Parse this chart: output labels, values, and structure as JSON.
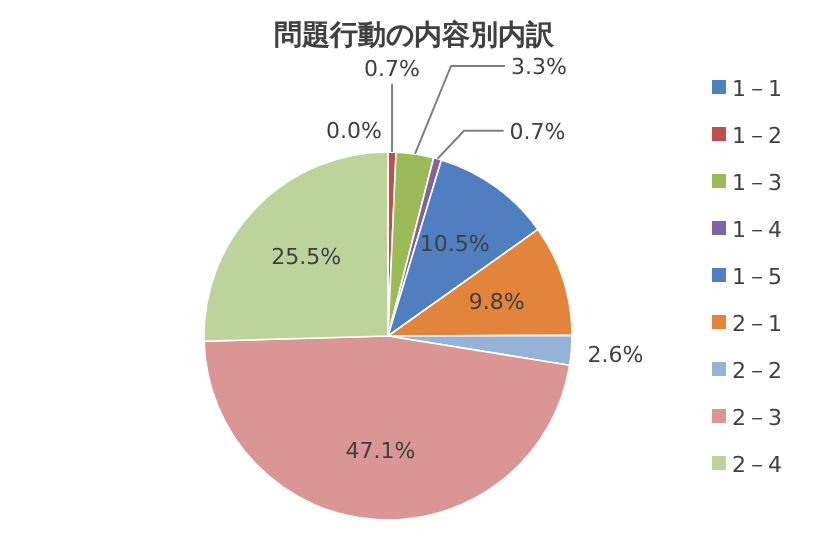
{
  "chart_data": {
    "type": "pie",
    "title": "問題行動の内容別内訳",
    "categories": [
      "1－1",
      "1－2",
      "1－3",
      "1－4",
      "1－5",
      "2－1",
      "2－2",
      "2－3",
      "2－4"
    ],
    "values": [
      0.0,
      0.7,
      3.3,
      0.7,
      10.5,
      9.8,
      2.6,
      47.1,
      25.5
    ],
    "value_labels": [
      "0.0%",
      "0.7%",
      "3.3%",
      "0.7%",
      "10.5%",
      "9.8%",
      "2.6%",
      "47.1%",
      "25.5%"
    ],
    "colors": [
      "#4f81bd",
      "#c0504d",
      "#9bbb59",
      "#8064a2",
      "#4f7fc0",
      "#e3843c",
      "#95b3d7",
      "#d99694",
      "#bcd39c"
    ],
    "legend": "right"
  }
}
